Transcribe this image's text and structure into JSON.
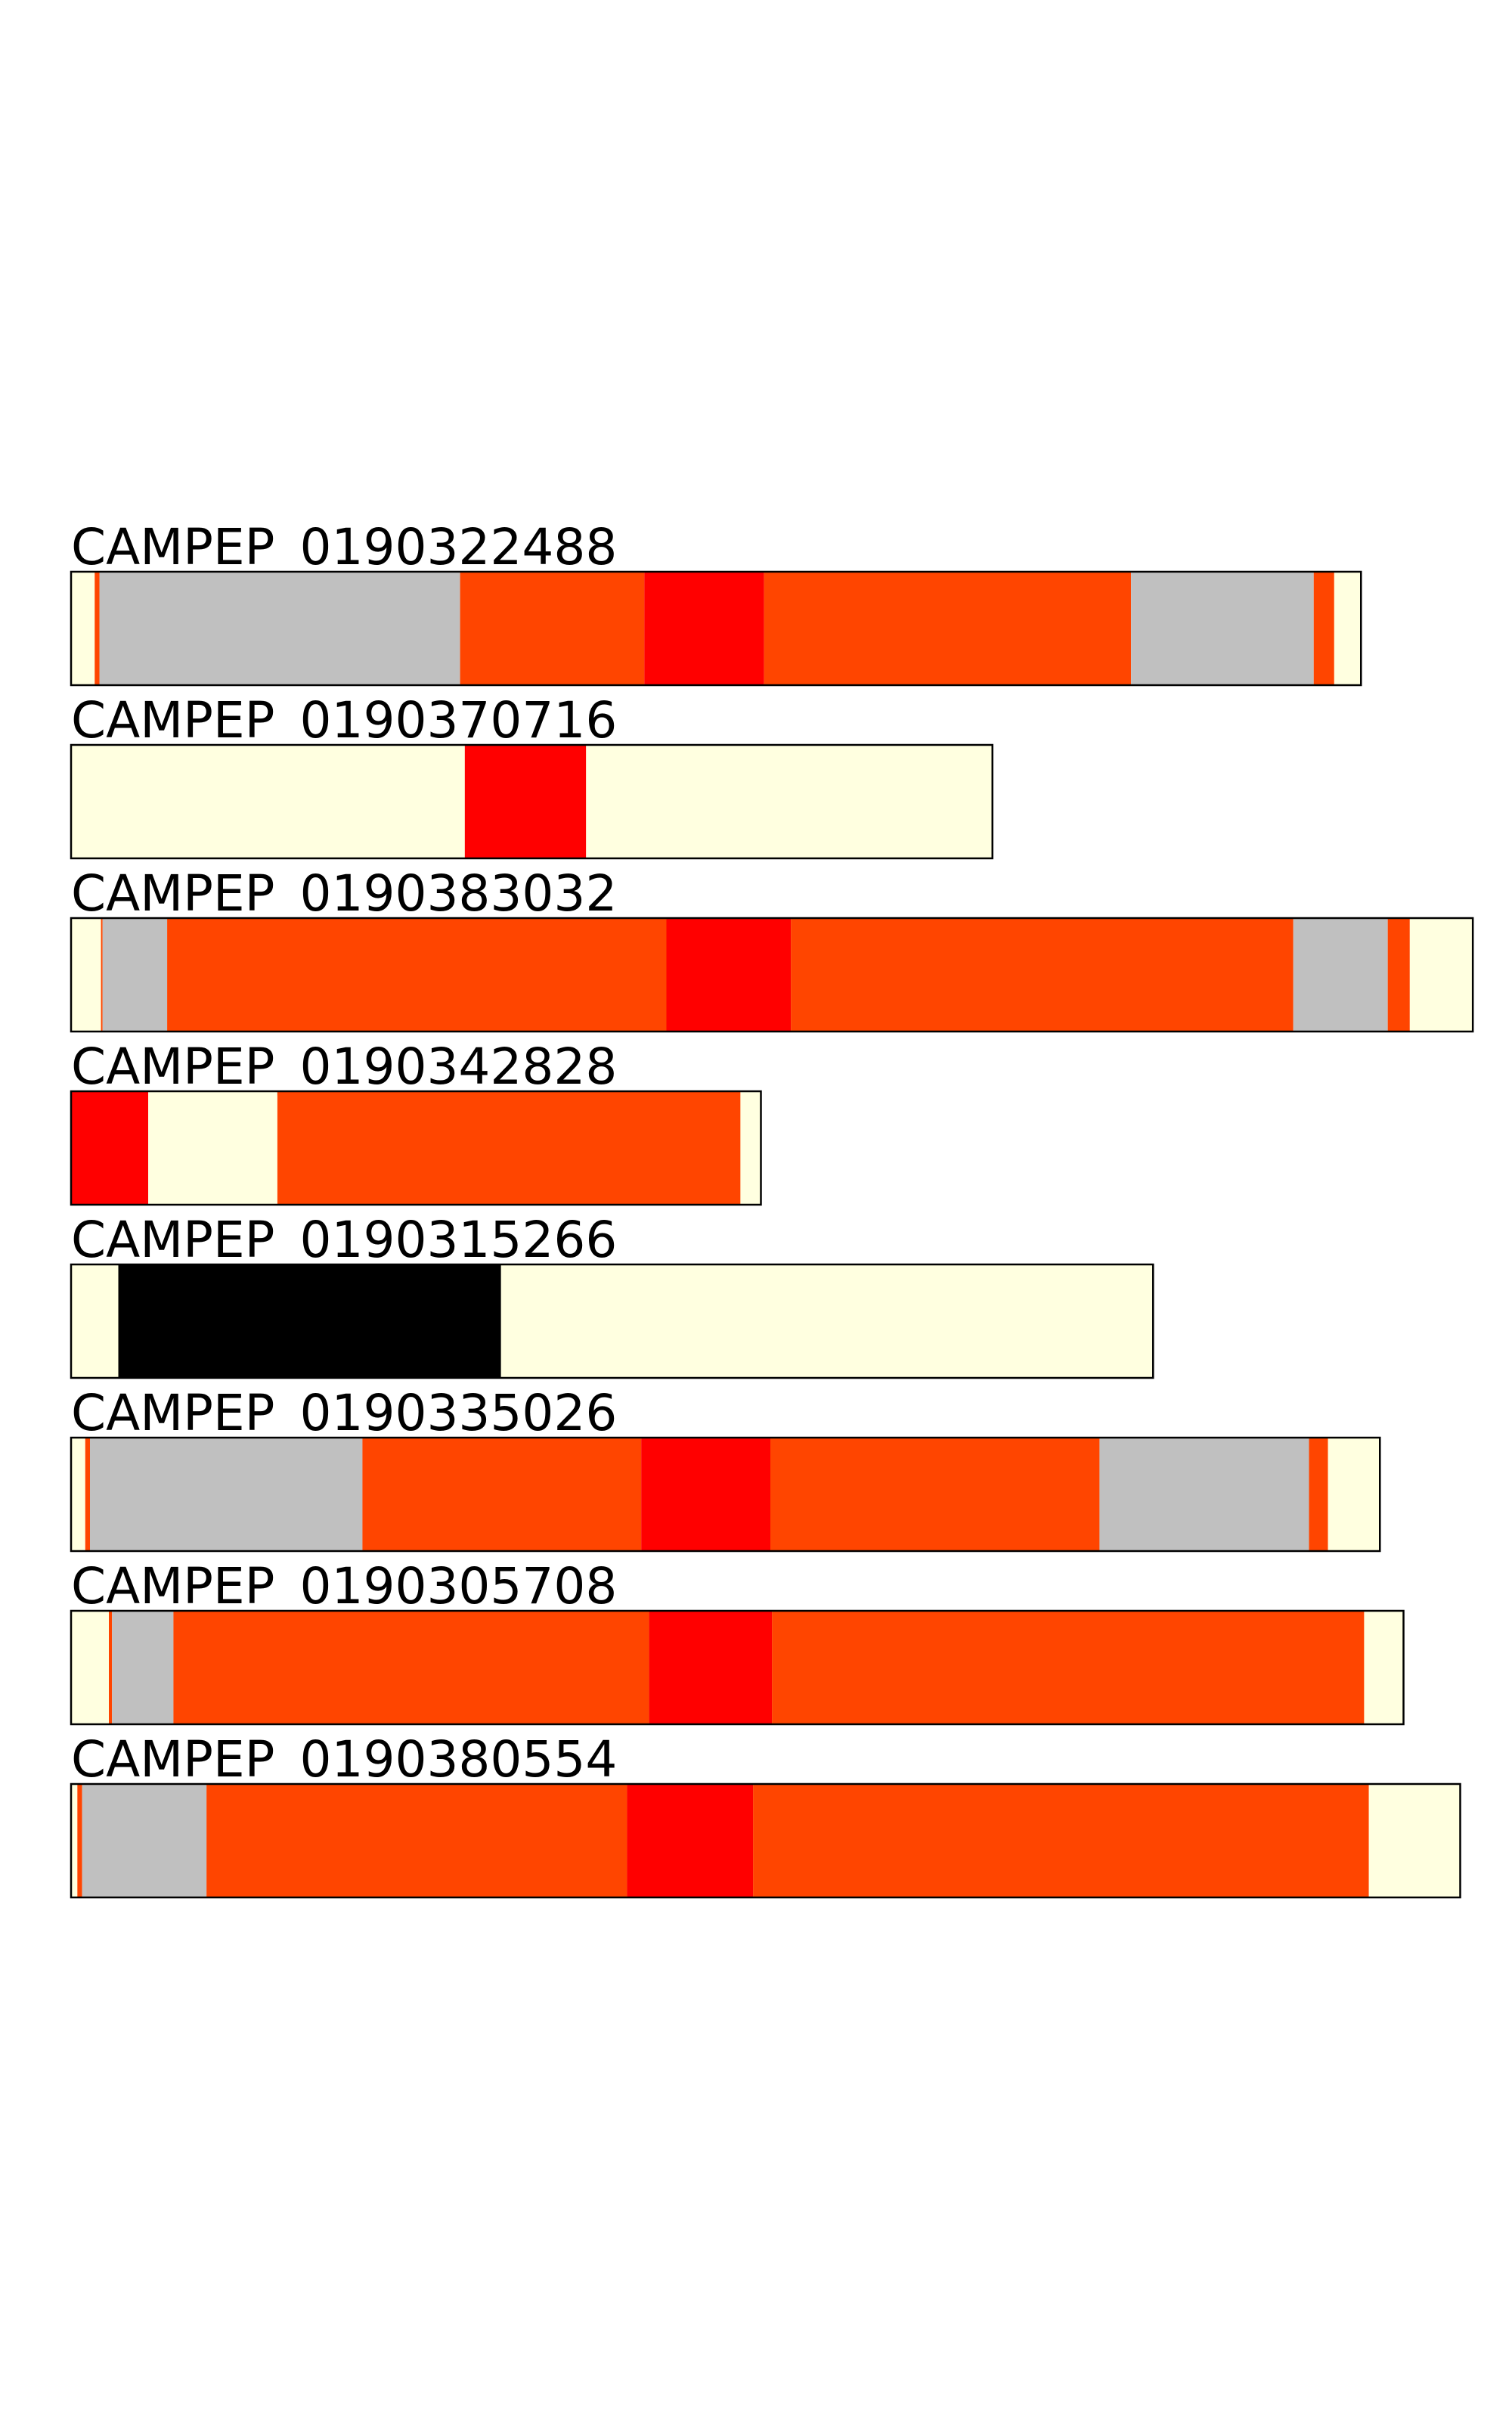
{
  "tracks": [
    {
      "label": "CAMPEP_0190322488",
      "segments": [
        {
          "color": "#ffffe0",
          "length": 15
        },
        {
          "color": "#ff4500",
          "length": 3
        },
        {
          "color": "#c0c0c0",
          "length": 229
        },
        {
          "color": "#ff4500",
          "length": 117
        },
        {
          "color": "#ff0000",
          "length": 76
        },
        {
          "color": "#ff4500",
          "length": 233
        },
        {
          "color": "#c0c0c0",
          "length": 116
        },
        {
          "color": "#ff4500",
          "length": 13
        },
        {
          "color": "#ffffe0",
          "length": 17
        }
      ]
    },
    {
      "label": "CAMPEP_0190370716",
      "segments": [
        {
          "color": "#ffffe0",
          "length": 250
        },
        {
          "color": "#ff0000",
          "length": 77
        },
        {
          "color": "#ffffe0",
          "length": 258
        }
      ]
    },
    {
      "label": "CAMPEP_0190383032",
      "segments": [
        {
          "color": "#ffffe0",
          "length": 19
        },
        {
          "color": "#ff4500",
          "length": 1
        },
        {
          "color": "#c0c0c0",
          "length": 41
        },
        {
          "color": "#ff4500",
          "length": 317
        },
        {
          "color": "#ff0000",
          "length": 79
        },
        {
          "color": "#ff4500",
          "length": 319
        },
        {
          "color": "#c0c0c0",
          "length": 60
        },
        {
          "color": "#ff4500",
          "length": 14
        },
        {
          "color": "#ffffe0",
          "length": 40
        }
      ]
    },
    {
      "label": "CAMPEP_0190342828",
      "segments": [
        {
          "color": "#ff0000",
          "length": 49
        },
        {
          "color": "#ffffe0",
          "length": 82
        },
        {
          "color": "#ff4500",
          "length": 294
        },
        {
          "color": "#ffffe0",
          "length": 13
        }
      ]
    },
    {
      "label": "CAMPEP_0190315266",
      "segments": [
        {
          "color": "#ffffe0",
          "length": 30
        },
        {
          "color": "#000000",
          "length": 243
        },
        {
          "color": "#ffffe0",
          "length": 414
        }
      ]
    },
    {
      "label": "CAMPEP_0190335026",
      "segments": [
        {
          "color": "#ffffe0",
          "length": 9
        },
        {
          "color": "#ff4500",
          "length": 3
        },
        {
          "color": "#c0c0c0",
          "length": 173
        },
        {
          "color": "#ff4500",
          "length": 177
        },
        {
          "color": "#ff0000",
          "length": 82
        },
        {
          "color": "#ff4500",
          "length": 209
        },
        {
          "color": "#c0c0c0",
          "length": 133
        },
        {
          "color": "#ff4500",
          "length": 12
        },
        {
          "color": "#ffffe0",
          "length": 33
        }
      ]
    },
    {
      "label": "CAMPEP_0190305708",
      "segments": [
        {
          "color": "#ffffe0",
          "length": 24
        },
        {
          "color": "#ff4500",
          "length": 2
        },
        {
          "color": "#c0c0c0",
          "length": 39
        },
        {
          "color": "#ff4500",
          "length": 302
        },
        {
          "color": "#ff0000",
          "length": 78
        },
        {
          "color": "#ff4500",
          "length": 376
        },
        {
          "color": "#ffffe0",
          "length": 25
        }
      ]
    },
    {
      "label": "CAMPEP_0190380554",
      "segments": [
        {
          "color": "#ffffe0",
          "length": 4
        },
        {
          "color": "#ff4500",
          "length": 3
        },
        {
          "color": "#c0c0c0",
          "length": 79
        },
        {
          "color": "#ff4500",
          "length": 267
        },
        {
          "color": "#ff0000",
          "length": 80
        },
        {
          "color": "#ff4500",
          "length": 391
        },
        {
          "color": "#ffffe0",
          "length": 58
        }
      ]
    }
  ]
}
